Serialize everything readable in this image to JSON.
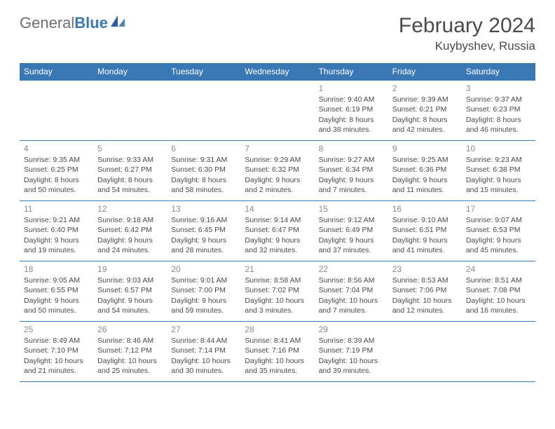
{
  "brand": {
    "part1": "General",
    "part2": "Blue"
  },
  "title": "February 2024",
  "location": "Kuybyshev, Russia",
  "colors": {
    "header_bg": "#3a78b5",
    "text": "#4a4a4a",
    "daynum": "#8a8a8a",
    "border": "#3a78b5",
    "background": "#ffffff"
  },
  "dayHeaders": [
    "Sunday",
    "Monday",
    "Tuesday",
    "Wednesday",
    "Thursday",
    "Friday",
    "Saturday"
  ],
  "weeks": [
    [
      null,
      null,
      null,
      null,
      {
        "n": "1",
        "sunrise": "Sunrise: 9:40 AM",
        "sunset": "Sunset: 6:19 PM",
        "daylight1": "Daylight: 8 hours",
        "daylight2": "and 38 minutes."
      },
      {
        "n": "2",
        "sunrise": "Sunrise: 9:39 AM",
        "sunset": "Sunset: 6:21 PM",
        "daylight1": "Daylight: 8 hours",
        "daylight2": "and 42 minutes."
      },
      {
        "n": "3",
        "sunrise": "Sunrise: 9:37 AM",
        "sunset": "Sunset: 6:23 PM",
        "daylight1": "Daylight: 8 hours",
        "daylight2": "and 46 minutes."
      }
    ],
    [
      {
        "n": "4",
        "sunrise": "Sunrise: 9:35 AM",
        "sunset": "Sunset: 6:25 PM",
        "daylight1": "Daylight: 8 hours",
        "daylight2": "and 50 minutes."
      },
      {
        "n": "5",
        "sunrise": "Sunrise: 9:33 AM",
        "sunset": "Sunset: 6:27 PM",
        "daylight1": "Daylight: 8 hours",
        "daylight2": "and 54 minutes."
      },
      {
        "n": "6",
        "sunrise": "Sunrise: 9:31 AM",
        "sunset": "Sunset: 6:30 PM",
        "daylight1": "Daylight: 8 hours",
        "daylight2": "and 58 minutes."
      },
      {
        "n": "7",
        "sunrise": "Sunrise: 9:29 AM",
        "sunset": "Sunset: 6:32 PM",
        "daylight1": "Daylight: 9 hours",
        "daylight2": "and 2 minutes."
      },
      {
        "n": "8",
        "sunrise": "Sunrise: 9:27 AM",
        "sunset": "Sunset: 6:34 PM",
        "daylight1": "Daylight: 9 hours",
        "daylight2": "and 7 minutes."
      },
      {
        "n": "9",
        "sunrise": "Sunrise: 9:25 AM",
        "sunset": "Sunset: 6:36 PM",
        "daylight1": "Daylight: 9 hours",
        "daylight2": "and 11 minutes."
      },
      {
        "n": "10",
        "sunrise": "Sunrise: 9:23 AM",
        "sunset": "Sunset: 6:38 PM",
        "daylight1": "Daylight: 9 hours",
        "daylight2": "and 15 minutes."
      }
    ],
    [
      {
        "n": "11",
        "sunrise": "Sunrise: 9:21 AM",
        "sunset": "Sunset: 6:40 PM",
        "daylight1": "Daylight: 9 hours",
        "daylight2": "and 19 minutes."
      },
      {
        "n": "12",
        "sunrise": "Sunrise: 9:18 AM",
        "sunset": "Sunset: 6:42 PM",
        "daylight1": "Daylight: 9 hours",
        "daylight2": "and 24 minutes."
      },
      {
        "n": "13",
        "sunrise": "Sunrise: 9:16 AM",
        "sunset": "Sunset: 6:45 PM",
        "daylight1": "Daylight: 9 hours",
        "daylight2": "and 28 minutes."
      },
      {
        "n": "14",
        "sunrise": "Sunrise: 9:14 AM",
        "sunset": "Sunset: 6:47 PM",
        "daylight1": "Daylight: 9 hours",
        "daylight2": "and 32 minutes."
      },
      {
        "n": "15",
        "sunrise": "Sunrise: 9:12 AM",
        "sunset": "Sunset: 6:49 PM",
        "daylight1": "Daylight: 9 hours",
        "daylight2": "and 37 minutes."
      },
      {
        "n": "16",
        "sunrise": "Sunrise: 9:10 AM",
        "sunset": "Sunset: 6:51 PM",
        "daylight1": "Daylight: 9 hours",
        "daylight2": "and 41 minutes."
      },
      {
        "n": "17",
        "sunrise": "Sunrise: 9:07 AM",
        "sunset": "Sunset: 6:53 PM",
        "daylight1": "Daylight: 9 hours",
        "daylight2": "and 45 minutes."
      }
    ],
    [
      {
        "n": "18",
        "sunrise": "Sunrise: 9:05 AM",
        "sunset": "Sunset: 6:55 PM",
        "daylight1": "Daylight: 9 hours",
        "daylight2": "and 50 minutes."
      },
      {
        "n": "19",
        "sunrise": "Sunrise: 9:03 AM",
        "sunset": "Sunset: 6:57 PM",
        "daylight1": "Daylight: 9 hours",
        "daylight2": "and 54 minutes."
      },
      {
        "n": "20",
        "sunrise": "Sunrise: 9:01 AM",
        "sunset": "Sunset: 7:00 PM",
        "daylight1": "Daylight: 9 hours",
        "daylight2": "and 59 minutes."
      },
      {
        "n": "21",
        "sunrise": "Sunrise: 8:58 AM",
        "sunset": "Sunset: 7:02 PM",
        "daylight1": "Daylight: 10 hours",
        "daylight2": "and 3 minutes."
      },
      {
        "n": "22",
        "sunrise": "Sunrise: 8:56 AM",
        "sunset": "Sunset: 7:04 PM",
        "daylight1": "Daylight: 10 hours",
        "daylight2": "and 7 minutes."
      },
      {
        "n": "23",
        "sunrise": "Sunrise: 8:53 AM",
        "sunset": "Sunset: 7:06 PM",
        "daylight1": "Daylight: 10 hours",
        "daylight2": "and 12 minutes."
      },
      {
        "n": "24",
        "sunrise": "Sunrise: 8:51 AM",
        "sunset": "Sunset: 7:08 PM",
        "daylight1": "Daylight: 10 hours",
        "daylight2": "and 16 minutes."
      }
    ],
    [
      {
        "n": "25",
        "sunrise": "Sunrise: 8:49 AM",
        "sunset": "Sunset: 7:10 PM",
        "daylight1": "Daylight: 10 hours",
        "daylight2": "and 21 minutes."
      },
      {
        "n": "26",
        "sunrise": "Sunrise: 8:46 AM",
        "sunset": "Sunset: 7:12 PM",
        "daylight1": "Daylight: 10 hours",
        "daylight2": "and 25 minutes."
      },
      {
        "n": "27",
        "sunrise": "Sunrise: 8:44 AM",
        "sunset": "Sunset: 7:14 PM",
        "daylight1": "Daylight: 10 hours",
        "daylight2": "and 30 minutes."
      },
      {
        "n": "28",
        "sunrise": "Sunrise: 8:41 AM",
        "sunset": "Sunset: 7:16 PM",
        "daylight1": "Daylight: 10 hours",
        "daylight2": "and 35 minutes."
      },
      {
        "n": "29",
        "sunrise": "Sunrise: 8:39 AM",
        "sunset": "Sunset: 7:19 PM",
        "daylight1": "Daylight: 10 hours",
        "daylight2": "and 39 minutes."
      },
      null,
      null
    ]
  ]
}
